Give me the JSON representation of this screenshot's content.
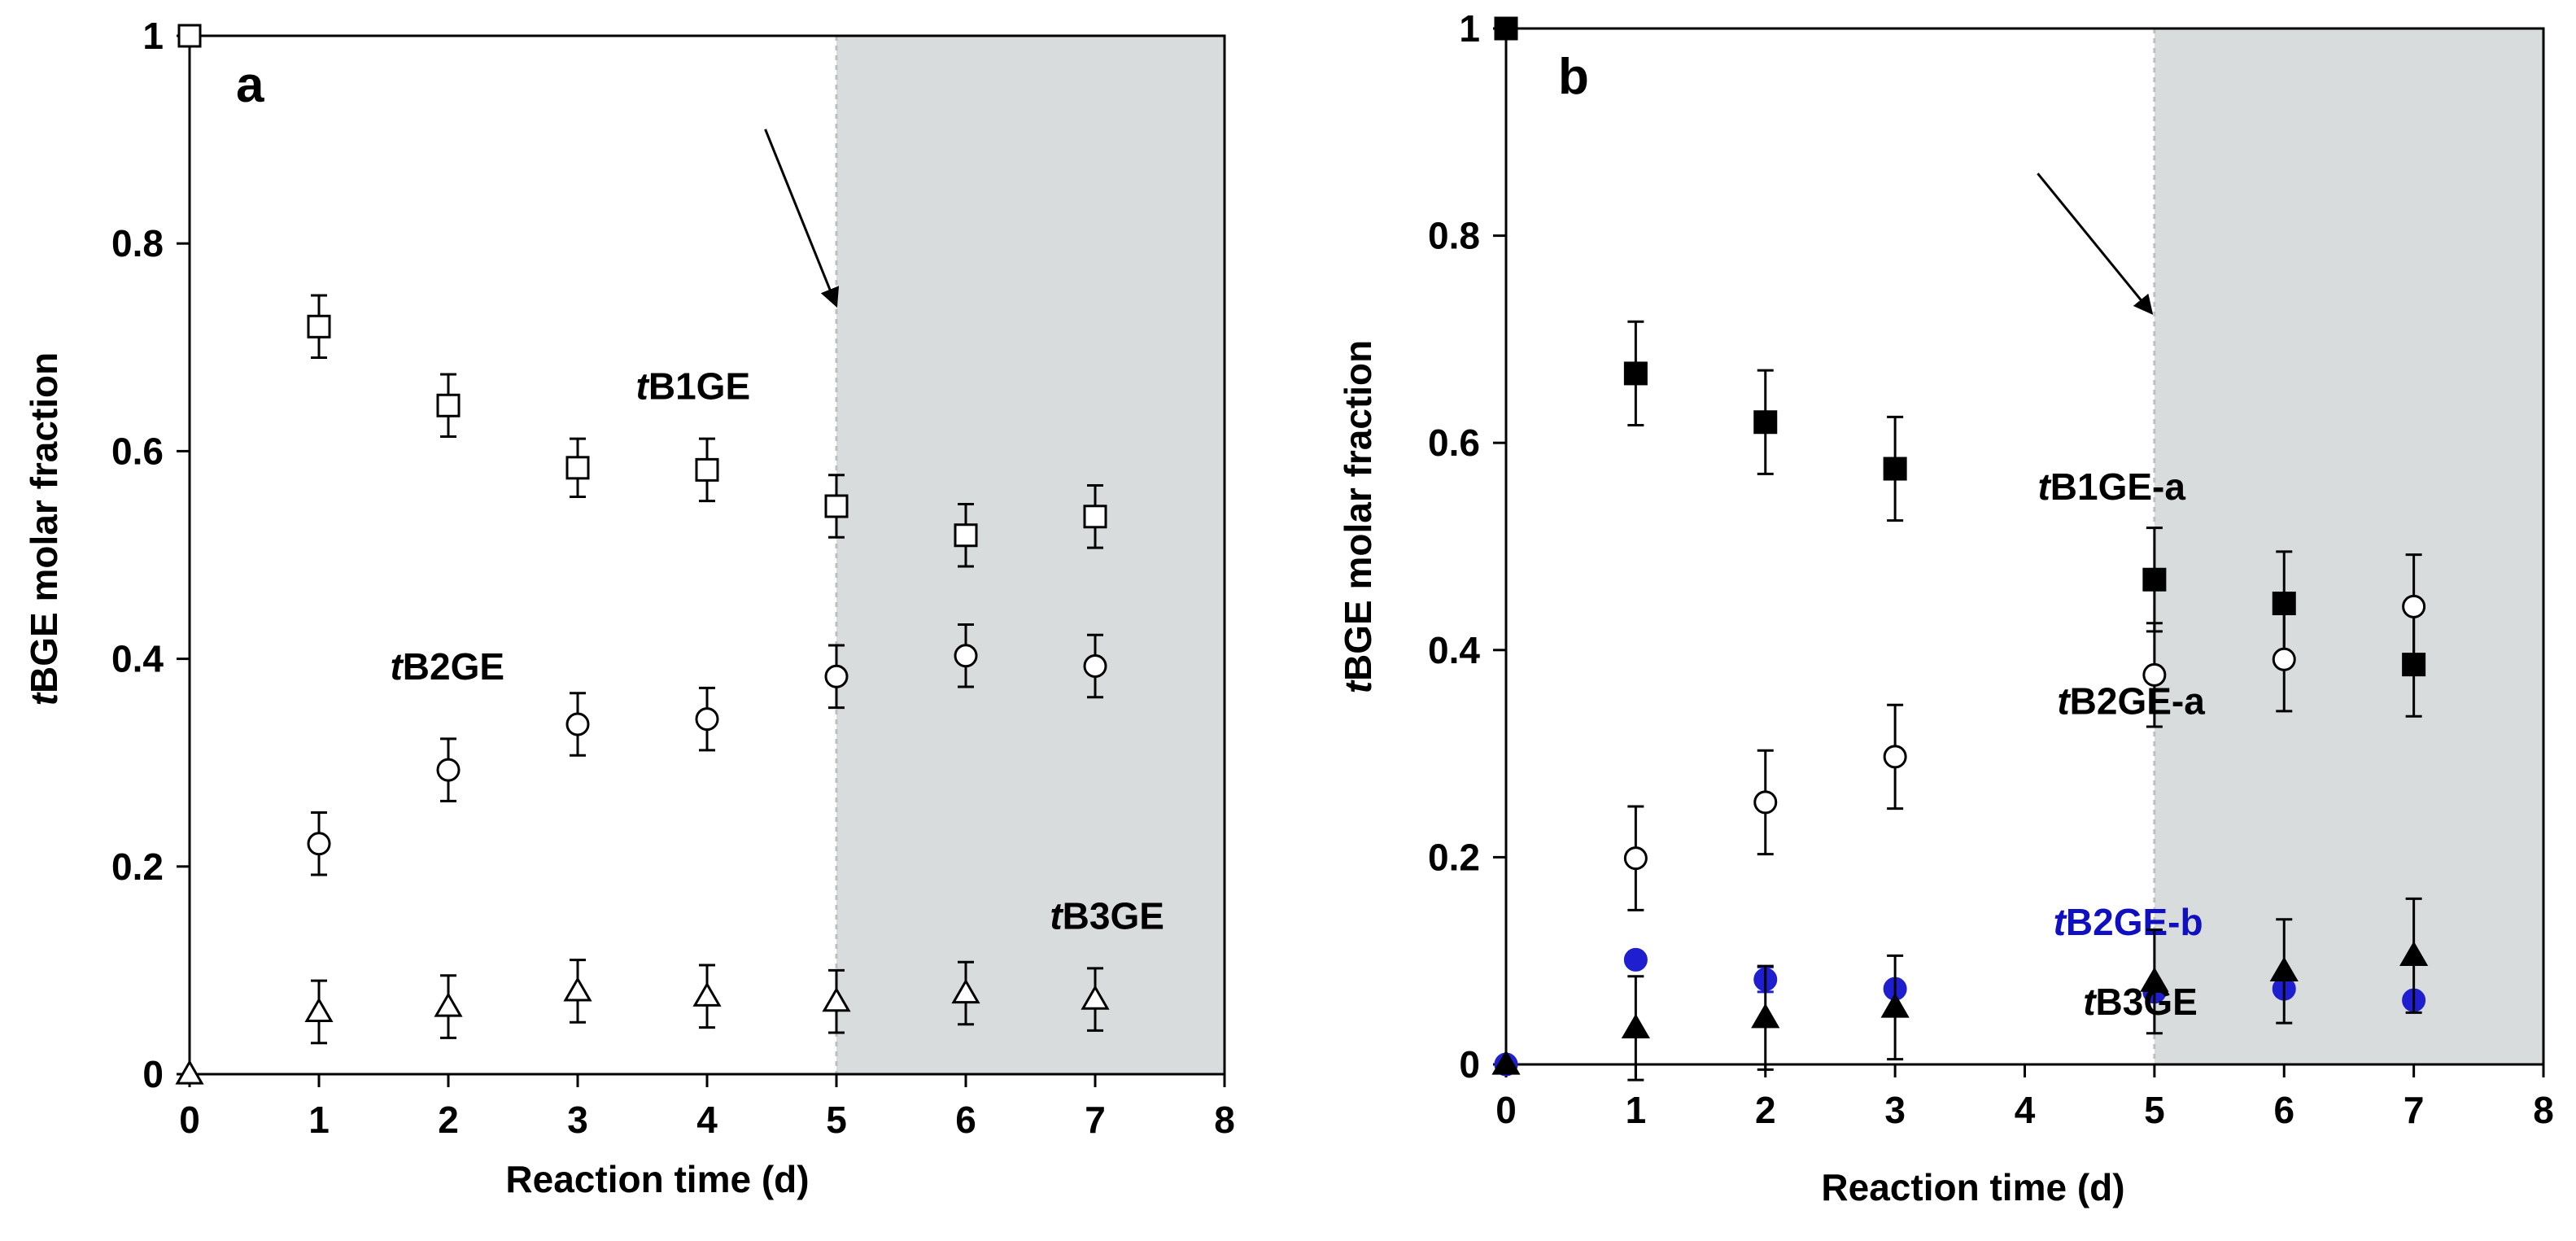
{
  "colors": {
    "background": "#ffffff",
    "shade": "#d9dcdd",
    "axis": "#000000",
    "marker_dark": "#000000",
    "marker_blue": "#1f1fd0",
    "label_blue": "#1010c0",
    "label_black": "#000000"
  },
  "chart_data": [
    {
      "type": "scatter",
      "panel": "a",
      "xlabel": "Reaction time (d)",
      "ylabel_italic": "t",
      "ylabel_rest": "BGE molar fraction",
      "xlim": [
        0,
        8
      ],
      "ylim": [
        0,
        1
      ],
      "x_ticks": [
        0,
        1,
        2,
        3,
        4,
        5,
        6,
        7,
        8
      ],
      "x_tick_labels": [
        "0",
        "1",
        "2",
        "3",
        "4",
        "5",
        "6",
        "7",
        "8"
      ],
      "y_ticks": [
        0,
        0.2,
        0.4,
        0.6,
        0.8,
        1
      ],
      "y_tick_labels": [
        "0",
        "0.2",
        "0.4",
        "0.6",
        "0.8",
        "1"
      ],
      "shaded_region": {
        "from": 5,
        "to": 8
      },
      "arrow": {
        "from": [
          4.45,
          0.91
        ],
        "to": [
          5.0,
          0.74
        ]
      },
      "series": [
        {
          "name": "tB1GE",
          "label_italic": "t",
          "label_rest": "B1GE",
          "label_anchor": [
            3.45,
            0.65
          ],
          "label_color": "#000000",
          "marker": "square-open",
          "color": "#000000",
          "x": [
            0,
            1,
            2,
            3,
            4,
            5,
            6,
            7
          ],
          "y": [
            1.0,
            0.72,
            0.644,
            0.584,
            0.582,
            0.547,
            0.519,
            0.537
          ],
          "err": [
            0,
            0.03,
            0.03,
            0.028,
            0.03,
            0.03,
            0.03,
            0.03
          ]
        },
        {
          "name": "tB2GE",
          "label_italic": "t",
          "label_rest": "B2GE",
          "label_anchor": [
            1.55,
            0.38
          ],
          "label_color": "#000000",
          "marker": "circle-open",
          "color": "#000000",
          "x": [
            1,
            2,
            3,
            4,
            5,
            6,
            7
          ],
          "y": [
            0.222,
            0.293,
            0.337,
            0.342,
            0.383,
            0.403,
            0.393
          ],
          "err": [
            0.03,
            0.03,
            0.03,
            0.03,
            0.03,
            0.03,
            0.03
          ]
        },
        {
          "name": "tB3GE",
          "label_italic": "t",
          "label_rest": "B3GE",
          "label_anchor": [
            6.65,
            0.14
          ],
          "label_color": "#000000",
          "marker": "triangle-open",
          "color": "#000000",
          "x": [
            0,
            1,
            2,
            3,
            4,
            5,
            6,
            7
          ],
          "y": [
            0,
            0.06,
            0.065,
            0.08,
            0.075,
            0.07,
            0.078,
            0.072
          ],
          "err": [
            0,
            0.03,
            0.03,
            0.03,
            0.03,
            0.03,
            0.03,
            0.03
          ]
        }
      ]
    },
    {
      "type": "scatter",
      "panel": "b",
      "xlabel": "Reaction time (d)",
      "ylabel_italic": "t",
      "ylabel_rest": "BGE molar fraction",
      "xlim": [
        0,
        8
      ],
      "ylim": [
        0,
        1
      ],
      "x_ticks": [
        0,
        1,
        2,
        3,
        4,
        5,
        6,
        7,
        8
      ],
      "x_tick_labels": [
        "0",
        "1",
        "2",
        "3",
        "4",
        "5",
        "6",
        "7",
        "8"
      ],
      "y_ticks": [
        0,
        0.2,
        0.4,
        0.6,
        0.8,
        1
      ],
      "y_tick_labels": [
        "0",
        "0.2",
        "0.4",
        "0.6",
        "0.8",
        "1"
      ],
      "shaded_region": {
        "from": 5,
        "to": 8
      },
      "arrow": {
        "from": [
          4.1,
          0.86
        ],
        "to": [
          4.98,
          0.725
        ]
      },
      "series": [
        {
          "name": "tB1GE-a",
          "label_italic": "t",
          "label_rest": "B1GE-a",
          "label_anchor": [
            4.1,
            0.545
          ],
          "label_color": "#000000",
          "marker": "square-filled",
          "color": "#000000",
          "x": [
            0,
            1,
            2,
            3,
            5,
            6,
            7
          ],
          "y": [
            1.0,
            0.667,
            0.62,
            0.575,
            0.468,
            0.445,
            0.386
          ],
          "err": [
            0,
            0.05,
            0.05,
            0.05,
            0.05,
            0.05,
            0.05
          ]
        },
        {
          "name": "tB2GE-a",
          "label_italic": "t",
          "label_rest": "B2GE-a",
          "label_anchor": [
            4.25,
            0.338
          ],
          "label_color": "#000000",
          "marker": "circle-open",
          "color": "#000000",
          "x": [
            1,
            2,
            3,
            5,
            6,
            7
          ],
          "y": [
            0.199,
            0.253,
            0.297,
            0.376,
            0.391,
            0.442
          ],
          "err": [
            0.05,
            0.05,
            0.05,
            0.05,
            0.05,
            0.05
          ]
        },
        {
          "name": "tB2GE-b",
          "label_italic": "t",
          "label_rest": "B2GE-b",
          "label_anchor": [
            4.22,
            0.125
          ],
          "label_color": "#1010c0",
          "marker": "circle-filled",
          "color": "#1f1fd0",
          "x": [
            0,
            1,
            2,
            3,
            5,
            6,
            7
          ],
          "y": [
            0,
            0.101,
            0.082,
            0.073,
            0.07,
            0.073,
            0.062
          ],
          "err": [
            0,
            0,
            0.012,
            0,
            0,
            0,
            0
          ]
        },
        {
          "name": "tB3GE",
          "label_italic": "t",
          "label_rest": "B3GE",
          "label_anchor": [
            4.45,
            0.048
          ],
          "label_color": "#000000",
          "marker": "triangle-filled",
          "color": "#000000",
          "x": [
            0,
            1,
            2,
            3,
            5,
            6,
            7
          ],
          "y": [
            0,
            0.035,
            0.045,
            0.055,
            0.08,
            0.09,
            0.105
          ],
          "err": [
            0,
            0.05,
            0.05,
            0.05,
            0.05,
            0.05,
            0.055
          ]
        }
      ]
    }
  ]
}
